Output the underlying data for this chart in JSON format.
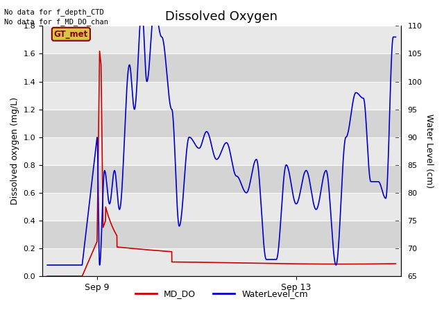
{
  "title": "Dissolved Oxygen",
  "ylabel_left": "Dissolved oxygen (mg/L)",
  "ylabel_right": "Water Level (cm)",
  "annotation_lines": [
    "No data for f_depth_CTD",
    "No data for f_MD_DO_chan"
  ],
  "gt_met_label": "GT_met",
  "xlabel_ticks": [
    "Sep 9",
    "Sep 13"
  ],
  "xtick_positions": [
    0.08,
    0.5
  ],
  "ylim_left": [
    0.0,
    1.8
  ],
  "ylim_right": [
    65,
    110
  ],
  "yticks_left": [
    0.0,
    0.2,
    0.4,
    0.6,
    0.8,
    1.0,
    1.2,
    1.4,
    1.6,
    1.8
  ],
  "yticks_right": [
    65,
    70,
    75,
    80,
    85,
    90,
    95,
    100,
    105,
    110
  ],
  "plot_bg_color": "#dcdcdc",
  "line_md_do_color": "#cc0000",
  "line_water_color": "#0000cc",
  "legend_entries": [
    "MD_DO",
    "WaterLevel_cm"
  ],
  "title_fontsize": 13,
  "axis_label_fontsize": 9,
  "grid_color": "#f0f0f0",
  "stripe_colors": [
    "#e8e8e8",
    "#d4d4d4"
  ]
}
